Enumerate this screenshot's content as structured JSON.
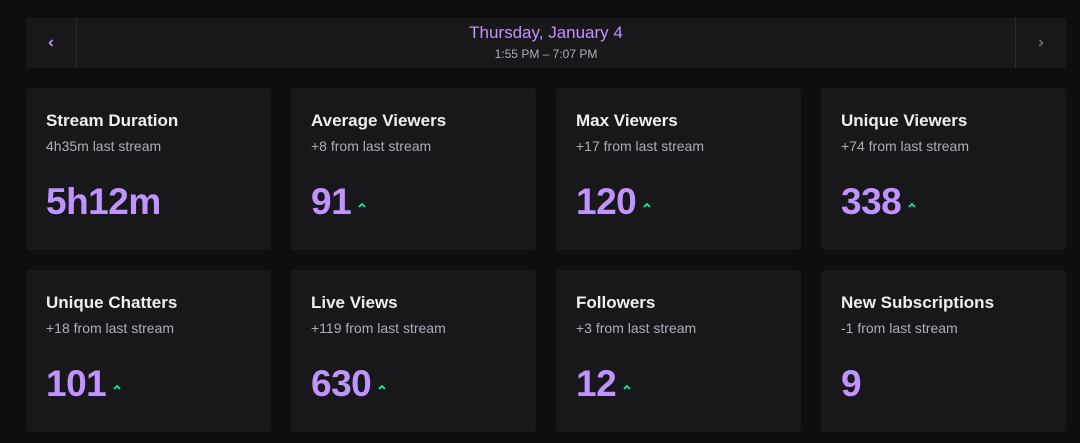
{
  "header": {
    "date": "Thursday, January 4",
    "time_range": "1:55 PM – 7:07 PM"
  },
  "colors": {
    "accent": "#bf94ff",
    "trend_up": "#00f593"
  },
  "stats": [
    {
      "title": "Stream Duration",
      "sub": "4h35m last stream",
      "value": "5h12m",
      "trend": "none"
    },
    {
      "title": "Average Viewers",
      "sub": "+8 from last stream",
      "value": "91",
      "trend": "up"
    },
    {
      "title": "Max Viewers",
      "sub": "+17 from last stream",
      "value": "120",
      "trend": "up"
    },
    {
      "title": "Unique Viewers",
      "sub": "+74 from last stream",
      "value": "338",
      "trend": "up"
    },
    {
      "title": "Unique Chatters",
      "sub": "+18 from last stream",
      "value": "101",
      "trend": "up"
    },
    {
      "title": "Live Views",
      "sub": "+119 from last stream",
      "value": "630",
      "trend": "up"
    },
    {
      "title": "Followers",
      "sub": "+3 from last stream",
      "value": "12",
      "trend": "up"
    },
    {
      "title": "New Subscriptions",
      "sub": "-1 from last stream",
      "value": "9",
      "trend": "none"
    }
  ]
}
